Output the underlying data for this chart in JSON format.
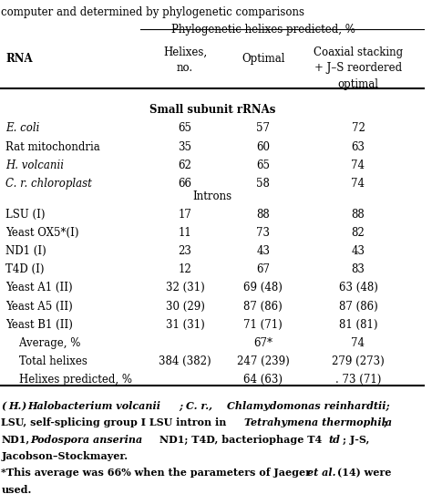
{
  "title_line": "computer and determined by phylogenetic comparisons",
  "col_header_line1": "Phylogenetic helixes predicted, %",
  "section1_header": "Small subunit rRNAs",
  "section2_header": "Introns",
  "rows": [
    {
      "rna": "E. coli",
      "helixes": "65",
      "optimal": "57",
      "coaxial": "72",
      "italic": true
    },
    {
      "rna": "Rat mitochondria",
      "helixes": "35",
      "optimal": "60",
      "coaxial": "63",
      "italic": false
    },
    {
      "rna": "H. volcanii",
      "helixes": "62",
      "optimal": "65",
      "coaxial": "74",
      "italic": true
    },
    {
      "rna": "C. r. chloroplast",
      "helixes": "66",
      "optimal": "58",
      "coaxial": "74",
      "italic": true
    },
    {
      "rna": "LSU (I)",
      "helixes": "17",
      "optimal": "88",
      "coaxial": "88",
      "italic": false
    },
    {
      "rna": "Yeast OX5*(I)",
      "helixes": "11",
      "optimal": "73",
      "coaxial": "82",
      "italic": false
    },
    {
      "rna": "ND1 (I)",
      "helixes": "23",
      "optimal": "43",
      "coaxial": "43",
      "italic": false
    },
    {
      "rna": "T4D (I)",
      "helixes": "12",
      "optimal": "67",
      "coaxial": "83",
      "italic": false
    },
    {
      "rna": "Yeast A1 (II)",
      "helixes": "32 (31)",
      "optimal": "69 (48)",
      "coaxial": "63 (48)",
      "italic": false
    },
    {
      "rna": "Yeast A5 (II)",
      "helixes": "30 (29)",
      "optimal": "87 (86)",
      "coaxial": "87 (86)",
      "italic": false
    },
    {
      "rna": "Yeast B1 (II)",
      "helixes": "31 (31)",
      "optimal": "71 (71)",
      "coaxial": "81 (81)",
      "italic": false
    },
    {
      "rna": "    Average, %",
      "helixes": "",
      "optimal": "67*",
      "coaxial": "74",
      "italic": false
    },
    {
      "rna": "    Total helixes",
      "helixes": "384 (382)",
      "optimal": "247 (239)",
      "coaxial": "279 (273)",
      "italic": false
    },
    {
      "rna": "    Helixes predicted, %",
      "helixes": "",
      "optimal": "64 (63)",
      "coaxial": ". 73 (71)",
      "italic": false
    }
  ],
  "bg_color": "#ffffff",
  "text_color": "#000000",
  "font_size": 8.5
}
